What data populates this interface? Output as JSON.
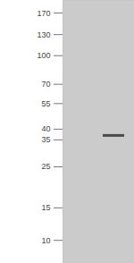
{
  "chart_data": {
    "type": "blot",
    "categories": [
      null,
      null
    ],
    "values": [
      null,
      37
    ],
    "ylim": [
      7.5,
      199
    ],
    "yticks": [
      170,
      130,
      100,
      70,
      55,
      40,
      35,
      25,
      15,
      10
    ],
    "log": "y",
    "tick_labels": "y",
    "color": "#4a4a4a"
  }
}
